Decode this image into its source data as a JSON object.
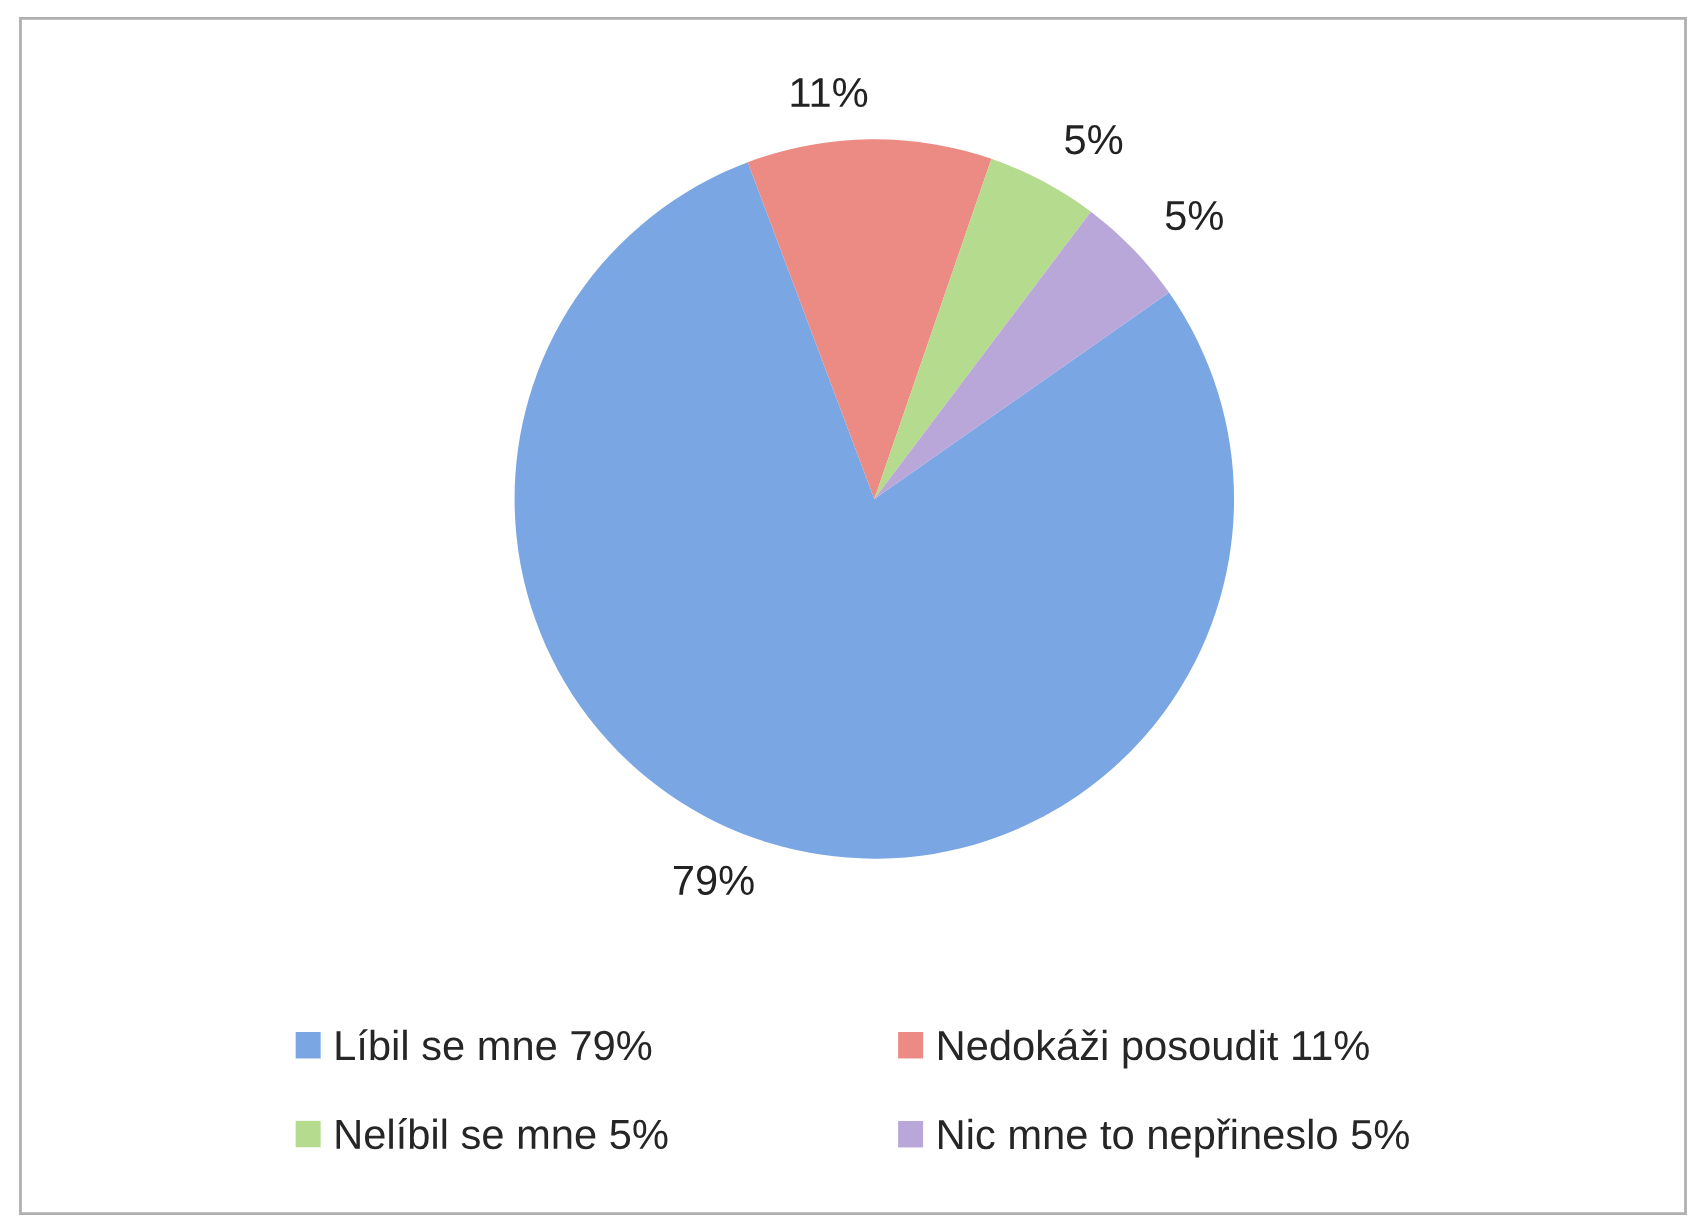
{
  "chart_data": {
    "type": "pie",
    "categories": [
      "Líbil se mne 79%",
      "Nedokáži posoudit 11%",
      "Nelíbil se mne 5%",
      "Nic mne to nepřineslo 5%"
    ],
    "values": [
      79,
      11,
      5,
      5
    ],
    "value_labels": [
      "79%",
      "11%",
      "5%",
      "5%"
    ],
    "colors": [
      "#7aa6e4",
      "#ec8a84",
      "#b5dc8e",
      "#b8a7d8"
    ],
    "legend": "bottom"
  }
}
